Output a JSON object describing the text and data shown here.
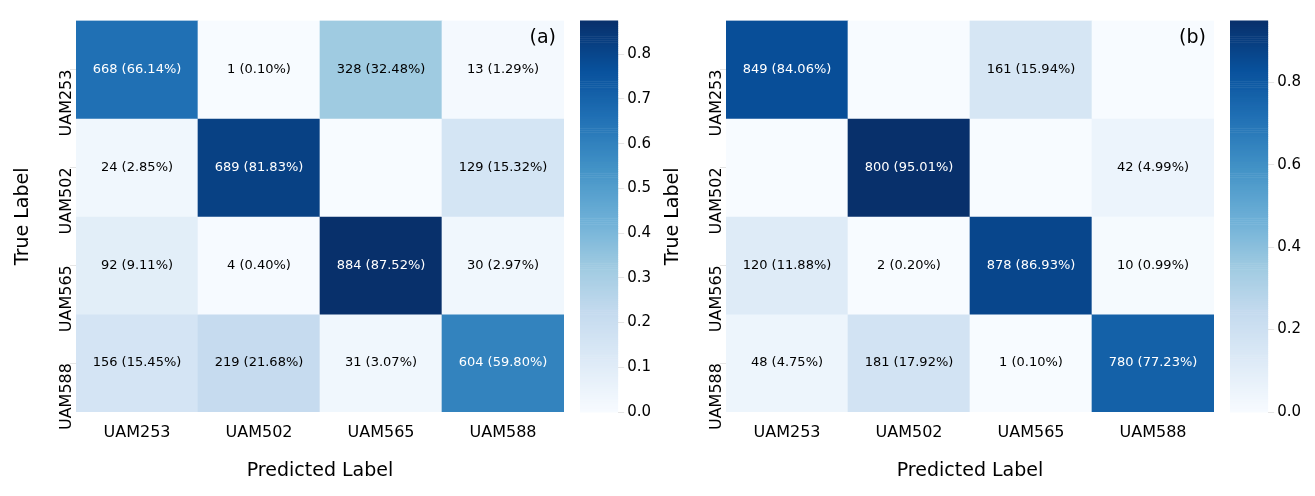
{
  "chart_data": [
    {
      "type": "heatmap",
      "xlabel": "Predicted Label",
      "ylabel": "True Label",
      "categories": [
        "UAM253",
        "UAM502",
        "UAM565",
        "UAM588"
      ],
      "y_categories": [
        "UAM253",
        "UAM502",
        "UAM565",
        "UAM588"
      ],
      "cells": [
        [
          0.6614,
          0.001,
          0.3248,
          0.0129
        ],
        [
          0.0285,
          0.8183,
          0,
          0.1532
        ],
        [
          0.0911,
          0.004,
          0.8752,
          0.0297
        ],
        [
          0.1545,
          0.2168,
          0.0307,
          0.598
        ]
      ],
      "cell_labels": [
        [
          "668 (66.14%)",
          "1 (0.10%)",
          "328 (32.48%)",
          "13 (1.29%)"
        ],
        [
          "24 (2.85%)",
          "689 (81.83%)",
          null,
          "129 (15.32%)"
        ],
        [
          "92 (9.11%)",
          "4 (0.40%)",
          "884 (87.52%)",
          "30 (2.97%)"
        ],
        [
          "156 (15.45%)",
          "219 (21.68%)",
          "31 (3.07%)",
          "604 (59.80%)"
        ]
      ],
      "clim": [
        0,
        0.8752
      ],
      "cticks": [
        {
          "value": 0,
          "label": "0.0"
        },
        0.1,
        0.2,
        0.3,
        0.4,
        0.5,
        0.6,
        0.7,
        0.8
      ],
      "annotations": [
        "(a)"
      ]
    },
    {
      "type": "heatmap",
      "xlabel": "Predicted Label",
      "ylabel": "True Label",
      "categories": [
        "UAM253",
        "UAM502",
        "UAM565",
        "UAM588"
      ],
      "y_categories": [
        "UAM253",
        "UAM502",
        "UAM565",
        "UAM588"
      ],
      "cells": [
        [
          0.8406,
          0,
          0.1594,
          0
        ],
        [
          0,
          0.9501,
          0,
          0.0499
        ],
        [
          0.1188,
          0.002,
          0.8693,
          0.0099
        ],
        [
          0.0475,
          0.1792,
          0.001,
          0.7723
        ]
      ],
      "cell_labels": [
        [
          "849 (84.06%)",
          null,
          "161 (15.94%)",
          null
        ],
        [
          null,
          "800 (95.01%)",
          null,
          "42 (4.99%)"
        ],
        [
          "120 (11.88%)",
          "2 (0.20%)",
          "878 (86.93%)",
          "10 (0.99%)"
        ],
        [
          "48 (4.75%)",
          "181 (17.92%)",
          "1 (0.10%)",
          "780 (77.23%)"
        ]
      ],
      "clim": [
        0,
        0.9501
      ],
      "cticks": [
        {
          "value": 0,
          "label": "0.0"
        },
        0.2,
        0.4,
        0.6,
        0.8
      ],
      "annotations": [
        "(b)"
      ]
    }
  ]
}
